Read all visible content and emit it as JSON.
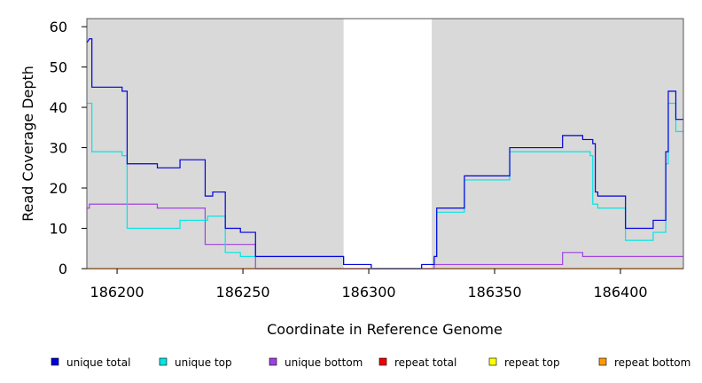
{
  "chart_data": {
    "type": "line",
    "title": "",
    "xlabel": "Coordinate in Reference Genome",
    "ylabel": "Read Coverage Depth",
    "xlim": [
      186188,
      186425
    ],
    "ylim": [
      0,
      62
    ],
    "xticks": [
      186200,
      186250,
      186300,
      186350,
      186400
    ],
    "yticks": [
      0,
      10,
      20,
      30,
      40,
      50,
      60
    ],
    "grid": false,
    "legend_position": "bottom",
    "shaded_regions": [
      {
        "x0": 186188,
        "x1": 186290,
        "color": "#d9d9d9"
      },
      {
        "x0": 186325,
        "x1": 186425,
        "color": "#d9d9d9"
      }
    ],
    "series": [
      {
        "name": "unique total",
        "color": "#0000dd",
        "points": [
          [
            186188,
            56
          ],
          [
            186189,
            57
          ],
          [
            186190,
            57
          ],
          [
            186190,
            45
          ],
          [
            186202,
            45
          ],
          [
            186202,
            44
          ],
          [
            186204,
            44
          ],
          [
            186204,
            26
          ],
          [
            186216,
            26
          ],
          [
            186216,
            25
          ],
          [
            186225,
            25
          ],
          [
            186225,
            27
          ],
          [
            186235,
            27
          ],
          [
            186235,
            18
          ],
          [
            186238,
            18
          ],
          [
            186238,
            19
          ],
          [
            186243,
            19
          ],
          [
            186243,
            10
          ],
          [
            186249,
            10
          ],
          [
            186249,
            9
          ],
          [
            186255,
            9
          ],
          [
            186255,
            3
          ],
          [
            186290,
            3
          ],
          [
            186290,
            1
          ],
          [
            186301,
            1
          ],
          [
            186301,
            0
          ],
          [
            186321,
            0
          ],
          [
            186321,
            1
          ],
          [
            186326,
            1
          ],
          [
            186326,
            3
          ],
          [
            186327,
            3
          ],
          [
            186327,
            15
          ],
          [
            186338,
            15
          ],
          [
            186338,
            23
          ],
          [
            186356,
            23
          ],
          [
            186356,
            30
          ],
          [
            186377,
            30
          ],
          [
            186377,
            33
          ],
          [
            186385,
            33
          ],
          [
            186385,
            32
          ],
          [
            186389,
            32
          ],
          [
            186389,
            31
          ],
          [
            186390,
            31
          ],
          [
            186390,
            19
          ],
          [
            186391,
            19
          ],
          [
            186391,
            18
          ],
          [
            186402,
            18
          ],
          [
            186402,
            10
          ],
          [
            186413,
            10
          ],
          [
            186413,
            12
          ],
          [
            186418,
            12
          ],
          [
            186418,
            29
          ],
          [
            186419,
            29
          ],
          [
            186419,
            44
          ],
          [
            186422,
            44
          ],
          [
            186422,
            37
          ],
          [
            186425,
            37
          ]
        ]
      },
      {
        "name": "unique top",
        "color": "#00e5e5",
        "points": [
          [
            186188,
            41
          ],
          [
            186190,
            41
          ],
          [
            186190,
            29
          ],
          [
            186202,
            29
          ],
          [
            186202,
            28
          ],
          [
            186204,
            28
          ],
          [
            186204,
            10
          ],
          [
            186225,
            10
          ],
          [
            186225,
            12
          ],
          [
            186236,
            12
          ],
          [
            186236,
            13
          ],
          [
            186243,
            13
          ],
          [
            186243,
            4
          ],
          [
            186249,
            4
          ],
          [
            186249,
            3
          ],
          [
            186290,
            3
          ],
          [
            186290,
            1
          ],
          [
            186301,
            1
          ],
          [
            186301,
            0
          ],
          [
            186321,
            0
          ],
          [
            186321,
            1
          ],
          [
            186326,
            1
          ],
          [
            186326,
            3
          ],
          [
            186327,
            3
          ],
          [
            186327,
            14
          ],
          [
            186338,
            14
          ],
          [
            186338,
            22
          ],
          [
            186356,
            22
          ],
          [
            186356,
            29
          ],
          [
            186388,
            29
          ],
          [
            186388,
            28
          ],
          [
            186389,
            28
          ],
          [
            186389,
            16
          ],
          [
            186391,
            16
          ],
          [
            186391,
            15
          ],
          [
            186402,
            15
          ],
          [
            186402,
            7
          ],
          [
            186413,
            7
          ],
          [
            186413,
            9
          ],
          [
            186418,
            9
          ],
          [
            186418,
            26
          ],
          [
            186419,
            26
          ],
          [
            186419,
            41
          ],
          [
            186422,
            41
          ],
          [
            186422,
            34
          ],
          [
            186425,
            34
          ]
        ]
      },
      {
        "name": "unique bottom",
        "color": "#a040e0",
        "points": [
          [
            186188,
            15
          ],
          [
            186189,
            15
          ],
          [
            186189,
            16
          ],
          [
            186216,
            16
          ],
          [
            186216,
            15
          ],
          [
            186235,
            15
          ],
          [
            186235,
            6
          ],
          [
            186255,
            6
          ],
          [
            186255,
            0
          ],
          [
            186326,
            0
          ],
          [
            186326,
            1
          ],
          [
            186377,
            1
          ],
          [
            186377,
            4
          ],
          [
            186385,
            4
          ],
          [
            186385,
            3
          ],
          [
            186425,
            3
          ]
        ]
      },
      {
        "name": "repeat total",
        "color": "#ee0000",
        "points": [
          [
            186188,
            0
          ],
          [
            186425,
            0
          ]
        ]
      },
      {
        "name": "repeat top",
        "color": "#ffff00",
        "points": [
          [
            186188,
            0
          ],
          [
            186425,
            0
          ]
        ]
      },
      {
        "name": "repeat bottom",
        "color": "#ff9900",
        "points": [
          [
            186188,
            0
          ],
          [
            186425,
            0
          ]
        ]
      }
    ]
  }
}
